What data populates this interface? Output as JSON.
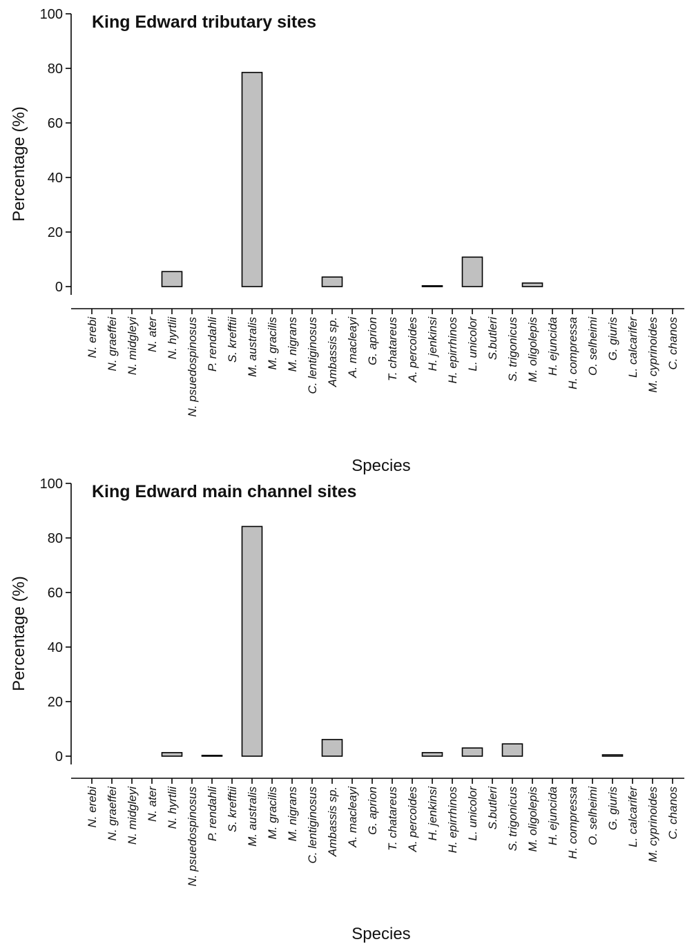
{
  "chart_data": [
    {
      "type": "bar",
      "title": "King Edward tributary sites",
      "xlabel": "Species",
      "ylabel": "Percentage (%)",
      "ylim": [
        0,
        100
      ],
      "yticks": [
        0,
        20,
        40,
        60,
        80,
        100
      ],
      "grid": false,
      "bar_color": "#c0c0c0",
      "categories": [
        "N. erebi",
        "N. graeffei",
        "N. midgleyi",
        "N. ater",
        "N. hyrtlii",
        "N. psuedospinosus",
        "P. rendahli",
        "S. krefftii",
        "M. australis",
        "M. gracilis",
        "M. nigrans",
        "C. lentiginosus",
        "Ambassis sp.",
        "A. macleayi",
        "G. aprion",
        "T. chatareus",
        "A. percoides",
        "H. jenkinsi",
        "H. epirrhinos",
        "L. unicolor",
        "S.butleri",
        "S. trigonicus",
        "M. oligolepis",
        "H. ejuncida",
        "H. compressa",
        "O. selheimi",
        "G. giuris",
        "L. calcarifer",
        "M. cyprinoides",
        "C. chanos"
      ],
      "values": [
        0,
        0,
        0,
        0,
        5.5,
        0,
        0,
        0,
        78.5,
        0,
        0,
        0,
        3.5,
        0,
        0,
        0,
        0,
        0.3,
        0,
        10.8,
        0,
        0,
        1.3,
        0,
        0,
        0,
        0,
        0,
        0,
        0
      ]
    },
    {
      "type": "bar",
      "title": "King Edward main channel sites",
      "xlabel": "Species",
      "ylabel": "Percentage (%)",
      "ylim": [
        0,
        100
      ],
      "yticks": [
        0,
        20,
        40,
        60,
        80,
        100
      ],
      "grid": false,
      "bar_color": "#c0c0c0",
      "categories": [
        "N. erebi",
        "N. graeffei",
        "N. midgleyi",
        "N. ater",
        "N. hyrtlii",
        "N. psuedospinosus",
        "P. rendahli",
        "S. krefftii",
        "M. australis",
        "M. gracilis",
        "M. nigrans",
        "C. lentiginosus",
        "Ambassis sp.",
        "A. macleayi",
        "G. aprion",
        "T. chatareus",
        "A. percoides",
        "H. jenkinsi",
        "H. epirrhinos",
        "L. unicolor",
        "S.butleri",
        "S. trigonicus",
        "M. oligolepis",
        "H. ejuncida",
        "H. compressa",
        "O. selheimi",
        "G. giuris",
        "L. calcarifer",
        "M. cyprinoides",
        "C. chanos"
      ],
      "values": [
        0,
        0,
        0,
        0,
        1.3,
        0,
        0.3,
        0,
        84.2,
        0,
        0,
        0,
        6.1,
        0,
        0,
        0,
        0,
        1.3,
        0,
        3.0,
        0,
        4.5,
        0,
        0,
        0,
        0,
        0.5,
        0,
        0,
        0
      ]
    }
  ]
}
